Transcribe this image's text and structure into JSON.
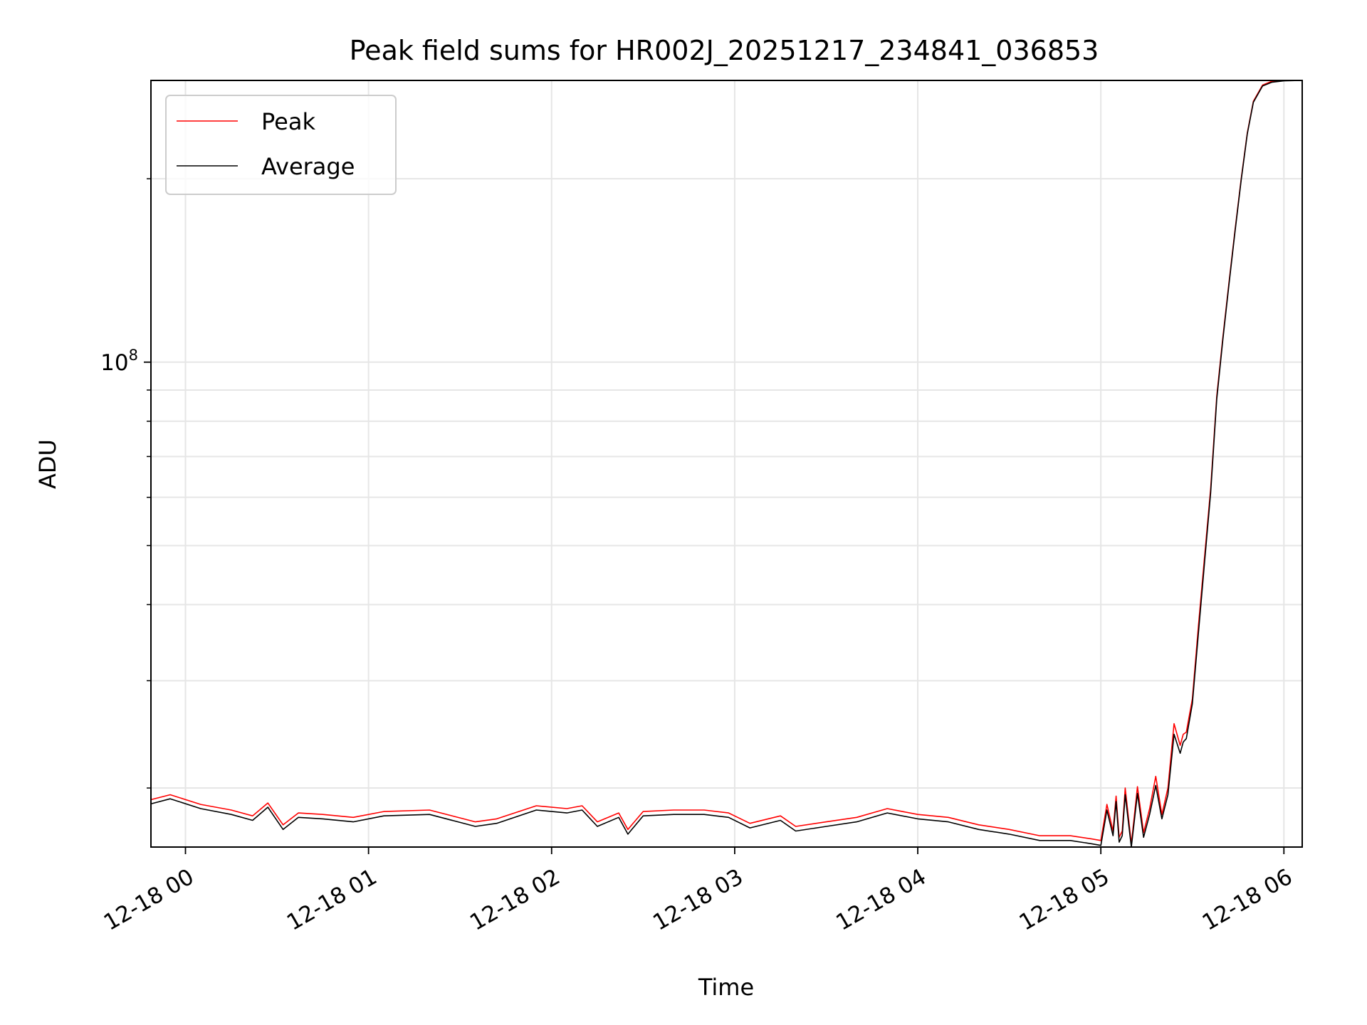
{
  "chart_data": {
    "type": "line",
    "title": "Peak field sums for HR002J_20251217_234841_036853",
    "xlabel": "Time",
    "ylabel": "ADU",
    "y_scale": "log",
    "ylim": [
      16000000,
      290000000
    ],
    "xlim": [
      "2025-12-17 23:48:41",
      "2025-12-18 06:06:00"
    ],
    "grid": true,
    "legend_position": "upper-left",
    "x_tick_labels": [
      "12-18 00",
      "12-18 01",
      "12-18 02",
      "12-18 03",
      "12-18 04",
      "12-18 05",
      "12-18 06"
    ],
    "x_ticks": [
      "2025-12-18 00:00",
      "2025-12-18 01:00",
      "2025-12-18 02:00",
      "2025-12-18 03:00",
      "2025-12-18 04:00",
      "2025-12-18 05:00",
      "2025-12-18 06:00"
    ],
    "y_tick_labels": [
      {
        "value": 100000000,
        "base": "10",
        "exp": "8"
      }
    ],
    "y_minor_ticks": [
      20000000,
      30000000,
      40000000,
      50000000,
      60000000,
      70000000,
      80000000,
      90000000,
      200000000
    ],
    "series": [
      {
        "name": "Peak",
        "color": "#ff0000",
        "x": [
          "2025-12-17 23:48",
          "2025-12-17 23:55",
          "2025-12-18 00:05",
          "2025-12-18 00:15",
          "2025-12-18 00:22",
          "2025-12-18 00:27",
          "2025-12-18 00:32",
          "2025-12-18 00:37",
          "2025-12-18 00:45",
          "2025-12-18 00:55",
          "2025-12-18 01:05",
          "2025-12-18 01:20",
          "2025-12-18 01:35",
          "2025-12-18 01:42",
          "2025-12-18 01:55",
          "2025-12-18 02:05",
          "2025-12-18 02:10",
          "2025-12-18 02:15",
          "2025-12-18 02:22",
          "2025-12-18 02:25",
          "2025-12-18 02:30",
          "2025-12-18 02:40",
          "2025-12-18 02:50",
          "2025-12-18 02:58",
          "2025-12-18 03:05",
          "2025-12-18 03:15",
          "2025-12-18 03:20",
          "2025-12-18 03:30",
          "2025-12-18 03:40",
          "2025-12-18 03:50",
          "2025-12-18 04:00",
          "2025-12-18 04:10",
          "2025-12-18 04:20",
          "2025-12-18 04:30",
          "2025-12-18 04:40",
          "2025-12-18 04:50",
          "2025-12-18 04:57",
          "2025-12-18 05:00",
          "2025-12-18 05:02",
          "2025-12-18 05:04",
          "2025-12-18 05:05",
          "2025-12-18 05:06",
          "2025-12-18 05:07",
          "2025-12-18 05:08",
          "2025-12-18 05:10",
          "2025-12-18 05:12",
          "2025-12-18 05:14",
          "2025-12-18 05:16",
          "2025-12-18 05:18",
          "2025-12-18 05:20",
          "2025-12-18 05:22",
          "2025-12-18 05:24",
          "2025-12-18 05:26",
          "2025-12-18 05:27",
          "2025-12-18 05:28",
          "2025-12-18 05:30",
          "2025-12-18 05:32",
          "2025-12-18 05:34",
          "2025-12-18 05:36",
          "2025-12-18 05:38",
          "2025-12-18 05:40",
          "2025-12-18 05:42",
          "2025-12-18 05:44",
          "2025-12-18 05:46",
          "2025-12-18 05:48",
          "2025-12-18 05:50",
          "2025-12-18 05:53",
          "2025-12-18 05:56",
          "2025-12-18 06:00",
          "2025-12-18 06:06"
        ],
        "values": [
          19100000,
          19500000,
          18800000,
          18400000,
          18000000,
          18900000,
          17400000,
          18200000,
          18100000,
          17900000,
          18300000,
          18400000,
          17600000,
          17800000,
          18700000,
          18500000,
          18700000,
          17600000,
          18200000,
          17100000,
          18300000,
          18400000,
          18400000,
          18200000,
          17500000,
          18000000,
          17300000,
          17600000,
          17900000,
          18500000,
          18100000,
          17900000,
          17400000,
          17100000,
          16700000,
          16700000,
          16500000,
          16400000,
          18800000,
          17000000,
          19400000,
          16600000,
          17000000,
          20000000,
          16200000,
          20100000,
          16900000,
          18500000,
          20900000,
          18100000,
          20000000,
          25500000,
          23500000,
          24500000,
          24700000,
          28000000,
          37000000,
          48000000,
          62000000,
          88000000,
          110000000,
          135000000,
          165000000,
          200000000,
          238000000,
          268000000,
          285000000,
          289000000,
          290000000,
          290000000
        ]
      },
      {
        "name": "Average",
        "color": "#000000",
        "x": [
          "2025-12-17 23:48",
          "2025-12-17 23:55",
          "2025-12-18 00:05",
          "2025-12-18 00:15",
          "2025-12-18 00:22",
          "2025-12-18 00:27",
          "2025-12-18 00:32",
          "2025-12-18 00:37",
          "2025-12-18 00:45",
          "2025-12-18 00:55",
          "2025-12-18 01:05",
          "2025-12-18 01:20",
          "2025-12-18 01:35",
          "2025-12-18 01:42",
          "2025-12-18 01:55",
          "2025-12-18 02:05",
          "2025-12-18 02:10",
          "2025-12-18 02:15",
          "2025-12-18 02:22",
          "2025-12-18 02:25",
          "2025-12-18 02:30",
          "2025-12-18 02:40",
          "2025-12-18 02:50",
          "2025-12-18 02:58",
          "2025-12-18 03:05",
          "2025-12-18 03:15",
          "2025-12-18 03:20",
          "2025-12-18 03:30",
          "2025-12-18 03:40",
          "2025-12-18 03:50",
          "2025-12-18 04:00",
          "2025-12-18 04:10",
          "2025-12-18 04:20",
          "2025-12-18 04:30",
          "2025-12-18 04:40",
          "2025-12-18 04:50",
          "2025-12-18 04:57",
          "2025-12-18 05:00",
          "2025-12-18 05:02",
          "2025-12-18 05:04",
          "2025-12-18 05:05",
          "2025-12-18 05:06",
          "2025-12-18 05:07",
          "2025-12-18 05:08",
          "2025-12-18 05:10",
          "2025-12-18 05:12",
          "2025-12-18 05:14",
          "2025-12-18 05:16",
          "2025-12-18 05:18",
          "2025-12-18 05:20",
          "2025-12-18 05:22",
          "2025-12-18 05:24",
          "2025-12-18 05:26",
          "2025-12-18 05:27",
          "2025-12-18 05:28",
          "2025-12-18 05:30",
          "2025-12-18 05:32",
          "2025-12-18 05:34",
          "2025-12-18 05:36",
          "2025-12-18 05:38",
          "2025-12-18 05:40",
          "2025-12-18 05:42",
          "2025-12-18 05:44",
          "2025-12-18 05:46",
          "2025-12-18 05:48",
          "2025-12-18 05:50",
          "2025-12-18 05:53",
          "2025-12-18 05:56",
          "2025-12-18 06:00",
          "2025-12-18 06:06"
        ],
        "values": [
          18800000,
          19200000,
          18500000,
          18100000,
          17700000,
          18600000,
          17100000,
          17900000,
          17800000,
          17600000,
          18000000,
          18100000,
          17300000,
          17500000,
          18400000,
          18200000,
          18400000,
          17300000,
          17900000,
          16800000,
          18000000,
          18100000,
          18100000,
          17900000,
          17200000,
          17700000,
          17000000,
          17300000,
          17600000,
          18200000,
          17800000,
          17600000,
          17100000,
          16800000,
          16400000,
          16400000,
          16200000,
          16100000,
          18400000,
          16700000,
          19000000,
          16300000,
          16700000,
          19500000,
          16000000,
          19600000,
          16600000,
          18100000,
          20200000,
          17800000,
          19500000,
          24500000,
          22800000,
          23800000,
          24100000,
          27500000,
          36000000,
          47000000,
          61000000,
          87000000,
          109000000,
          134000000,
          164000000,
          199000000,
          237000000,
          267000000,
          284000000,
          288000000,
          289500000,
          290000000
        ]
      }
    ]
  }
}
